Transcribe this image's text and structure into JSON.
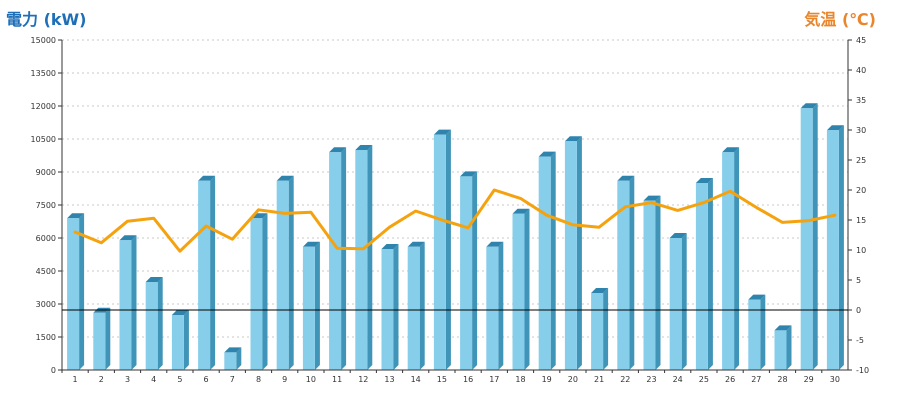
{
  "header": {
    "left_title": "電力 (kW)",
    "right_title": "気温 (℃)"
  },
  "chart_data": {
    "type": "bar",
    "categories": [
      "1",
      "2",
      "3",
      "4",
      "5",
      "6",
      "7",
      "8",
      "9",
      "10",
      "11",
      "12",
      "13",
      "14",
      "15",
      "16",
      "17",
      "18",
      "19",
      "20",
      "21",
      "22",
      "23",
      "24",
      "25",
      "26",
      "27",
      "28",
      "29",
      "30"
    ],
    "series": [
      {
        "axis": "left",
        "type": "bar",
        "color": "#87ceeb",
        "values": [
          6900,
          2600,
          5900,
          4000,
          2500,
          8600,
          800,
          6900,
          8600,
          5600,
          9900,
          10000,
          5500,
          5600,
          10700,
          8800,
          5600,
          7100,
          9700,
          10400,
          3500,
          8600,
          7700,
          6000,
          8500,
          9900,
          3200,
          1800,
          11900,
          10900
        ]
      },
      {
        "axis": "right",
        "type": "line",
        "color": "#f5a20f",
        "values": [
          13,
          11.2,
          14.8,
          15.3,
          9.8,
          14,
          11.8,
          16.7,
          16.1,
          16.3,
          10.3,
          10.2,
          13.8,
          16.5,
          15,
          13.7,
          20,
          18.6,
          15.8,
          14.2,
          13.8,
          17.2,
          17.9,
          16.6,
          17.9,
          19.8,
          17.1,
          14.6,
          14.9,
          15.8
        ]
      }
    ],
    "y_left": {
      "lim": [
        0,
        15000
      ],
      "ticks": [
        "0",
        "1500",
        "3000",
        "4500",
        "6000",
        "7500",
        "9000",
        "10500",
        "12000",
        "13500",
        "15000"
      ]
    },
    "y_right": {
      "lim": [
        -10,
        45
      ],
      "ticks": [
        "-10",
        "-5",
        "0",
        "5",
        "10",
        "15",
        "20",
        "25",
        "30",
        "35",
        "40",
        "45"
      ]
    },
    "grid": "horizontal-dotted"
  }
}
